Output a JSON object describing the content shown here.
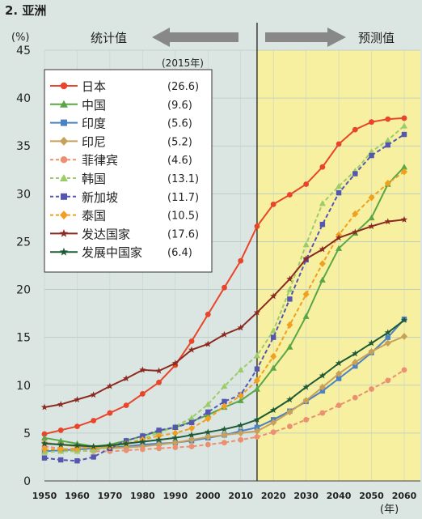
{
  "chart_data": {
    "type": "line",
    "title": "2. 亚洲",
    "ylabel": "(%)",
    "xlabel": "(年)",
    "ylim": [
      0,
      45
    ],
    "xlim": [
      1950,
      2060
    ],
    "yticks": [
      0,
      5,
      10,
      15,
      20,
      25,
      30,
      35,
      40,
      45
    ],
    "xticks": [
      1950,
      1960,
      1970,
      1980,
      1990,
      2000,
      2010,
      2020,
      2030,
      2040,
      2050,
      2060
    ],
    "phase_divider_year": 2015,
    "phase_left_label": "统计值",
    "phase_right_label": "预测值",
    "legend_year_label": "(2015年)",
    "legend_position": "top-left",
    "grid": true,
    "series": [
      {
        "name": "日本",
        "legend_value": "(26.6)",
        "color": "#e8452a",
        "marker": "circle",
        "dash": false,
        "x": [
          1950,
          1955,
          1960,
          1965,
          1970,
          1975,
          1980,
          1985,
          1990,
          1995,
          2000,
          2005,
          2010,
          2015,
          2020,
          2025,
          2030,
          2035,
          2040,
          2045,
          2050,
          2055,
          2060
        ],
        "y": [
          4.9,
          5.3,
          5.7,
          6.3,
          7.1,
          7.9,
          9.1,
          10.3,
          12.1,
          14.6,
          17.4,
          20.2,
          23.0,
          26.6,
          28.9,
          29.9,
          31.0,
          32.8,
          35.2,
          36.7,
          37.5,
          37.8,
          37.9
        ]
      },
      {
        "name": "中国",
        "legend_value": "(9.6)",
        "color": "#5aa646",
        "marker": "triangle",
        "dash": false,
        "x": [
          1950,
          1955,
          1960,
          1965,
          1970,
          1975,
          1980,
          1985,
          1990,
          1995,
          2000,
          2005,
          2010,
          2015,
          2020,
          2025,
          2030,
          2035,
          2040,
          2045,
          2050,
          2055,
          2060
        ],
        "y": [
          4.5,
          4.2,
          3.9,
          3.6,
          3.8,
          4.2,
          4.7,
          5.2,
          5.6,
          6.2,
          6.9,
          7.7,
          8.4,
          9.6,
          11.8,
          14.0,
          17.2,
          21.0,
          24.3,
          25.9,
          27.5,
          31.0,
          32.8
        ]
      },
      {
        "name": "印度",
        "legend_value": "(5.6)",
        "color": "#4a82c4",
        "marker": "square",
        "dash": false,
        "x": [
          1950,
          1955,
          1960,
          1965,
          1970,
          1975,
          1980,
          1985,
          1990,
          1995,
          2000,
          2005,
          2010,
          2015,
          2020,
          2025,
          2030,
          2035,
          2040,
          2045,
          2050,
          2055,
          2060
        ],
        "y": [
          3.1,
          3.2,
          3.3,
          3.4,
          3.5,
          3.6,
          3.8,
          3.9,
          4.0,
          4.2,
          4.5,
          4.8,
          5.2,
          5.6,
          6.4,
          7.3,
          8.3,
          9.4,
          10.7,
          12.0,
          13.4,
          15.0,
          16.9
        ]
      },
      {
        "name": "印尼",
        "legend_value": "(5.2)",
        "color": "#c8a05a",
        "marker": "diamond",
        "dash": false,
        "x": [
          1950,
          1955,
          1960,
          1965,
          1970,
          1975,
          1980,
          1985,
          1990,
          1995,
          2000,
          2005,
          2010,
          2015,
          2020,
          2025,
          2030,
          2035,
          2040,
          2045,
          2050,
          2055,
          2060
        ],
        "y": [
          4.0,
          3.8,
          3.6,
          3.5,
          3.4,
          3.5,
          3.6,
          3.8,
          4.0,
          4.3,
          4.6,
          4.8,
          5.0,
          5.2,
          6.1,
          7.2,
          8.4,
          9.8,
          11.2,
          12.4,
          13.5,
          14.4,
          15.1
        ]
      },
      {
        "name": "菲律宾",
        "legend_value": "(4.6)",
        "color": "#eb9070",
        "marker": "circle",
        "dash": true,
        "x": [
          1950,
          1955,
          1960,
          1965,
          1970,
          1975,
          1980,
          1985,
          1990,
          1995,
          2000,
          2005,
          2010,
          2015,
          2020,
          2025,
          2030,
          2035,
          2040,
          2045,
          2050,
          2055,
          2060
        ],
        "y": [
          3.6,
          3.4,
          3.2,
          3.1,
          3.1,
          3.2,
          3.3,
          3.4,
          3.5,
          3.6,
          3.8,
          4.0,
          4.3,
          4.6,
          5.1,
          5.7,
          6.4,
          7.1,
          7.9,
          8.7,
          9.6,
          10.5,
          11.6
        ]
      },
      {
        "name": "韩国",
        "legend_value": "(13.1)",
        "color": "#9ccc6a",
        "marker": "triangle",
        "dash": true,
        "x": [
          1950,
          1955,
          1960,
          1965,
          1970,
          1975,
          1980,
          1985,
          1990,
          1995,
          2000,
          2005,
          2010,
          2015,
          2020,
          2025,
          2030,
          2035,
          2040,
          2045,
          2050,
          2055,
          2060
        ],
        "y": [
          3.0,
          3.1,
          3.1,
          3.2,
          3.5,
          3.9,
          4.4,
          5.0,
          5.7,
          6.6,
          8.0,
          9.9,
          11.6,
          13.1,
          15.7,
          20.0,
          24.7,
          29.0,
          30.8,
          32.4,
          34.4,
          35.6,
          37.1
        ]
      },
      {
        "name": "新加坡",
        "legend_value": "(11.7)",
        "color": "#5456b0",
        "marker": "square",
        "dash": true,
        "x": [
          1950,
          1955,
          1960,
          1965,
          1970,
          1975,
          1980,
          1985,
          1990,
          1995,
          2000,
          2005,
          2010,
          2015,
          2020,
          2025,
          2030,
          2035,
          2040,
          2045,
          2050,
          2055,
          2060
        ],
        "y": [
          2.4,
          2.2,
          2.1,
          2.5,
          3.4,
          4.2,
          4.7,
          5.3,
          5.6,
          6.1,
          7.2,
          8.3,
          9.0,
          11.7,
          15.0,
          19.0,
          23.1,
          26.8,
          30.1,
          32.1,
          34.0,
          35.1,
          36.2
        ]
      },
      {
        "name": "泰国",
        "legend_value": "(10.5)",
        "color": "#f0a020",
        "marker": "diamond",
        "dash": true,
        "x": [
          1950,
          1955,
          1960,
          1965,
          1970,
          1975,
          1980,
          1985,
          1990,
          1995,
          2000,
          2005,
          2010,
          2015,
          2020,
          2025,
          2030,
          2035,
          2040,
          2045,
          2050,
          2055,
          2060
        ],
        "y": [
          3.3,
          3.3,
          3.4,
          3.5,
          3.6,
          3.9,
          4.3,
          4.7,
          5.0,
          5.5,
          6.5,
          7.8,
          8.9,
          10.5,
          13.0,
          16.3,
          19.5,
          22.7,
          25.7,
          27.9,
          29.6,
          31.1,
          32.3
        ]
      },
      {
        "name": "发达国家",
        "legend_value": "(17.6)",
        "color": "#8a2a20",
        "marker": "star",
        "dash": false,
        "x": [
          1950,
          1955,
          1960,
          1965,
          1970,
          1975,
          1980,
          1985,
          1990,
          1995,
          2000,
          2005,
          2010,
          2015,
          2020,
          2025,
          2030,
          2035,
          2040,
          2045,
          2050,
          2055,
          2060
        ],
        "y": [
          7.7,
          8.0,
          8.5,
          9.0,
          9.9,
          10.7,
          11.6,
          11.5,
          12.3,
          13.7,
          14.3,
          15.3,
          16.0,
          17.6,
          19.3,
          21.1,
          23.2,
          24.2,
          25.4,
          26.0,
          26.6,
          27.1,
          27.3
        ]
      },
      {
        "name": "发展中国家",
        "legend_value": "(6.4)",
        "color": "#1f5a36",
        "marker": "star",
        "dash": false,
        "x": [
          1950,
          1955,
          1960,
          1965,
          1970,
          1975,
          1980,
          1985,
          1990,
          1995,
          2000,
          2005,
          2010,
          2015,
          2020,
          2025,
          2030,
          2035,
          2040,
          2045,
          2050,
          2055,
          2060
        ],
        "y": [
          3.9,
          3.8,
          3.7,
          3.6,
          3.7,
          3.9,
          4.1,
          4.3,
          4.5,
          4.8,
          5.1,
          5.4,
          5.8,
          6.4,
          7.4,
          8.5,
          9.8,
          11.0,
          12.3,
          13.3,
          14.4,
          15.5,
          16.8
        ]
      }
    ]
  }
}
